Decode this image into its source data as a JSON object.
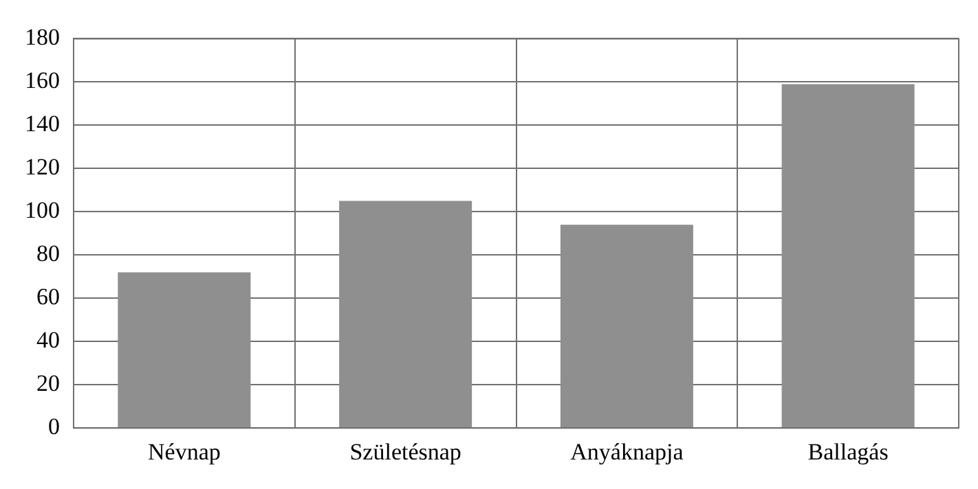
{
  "chart_data": {
    "type": "bar",
    "categories": [
      "Névnap",
      "Születésnap",
      "Anyáknapja",
      "Ballagás"
    ],
    "values": [
      72,
      105,
      94,
      159
    ],
    "color": "#8f8f8f",
    "ylim": [
      0,
      180
    ],
    "yticks": [
      0,
      20,
      40,
      60,
      80,
      100,
      120,
      140,
      160,
      180
    ],
    "grid": true,
    "legend": false
  }
}
